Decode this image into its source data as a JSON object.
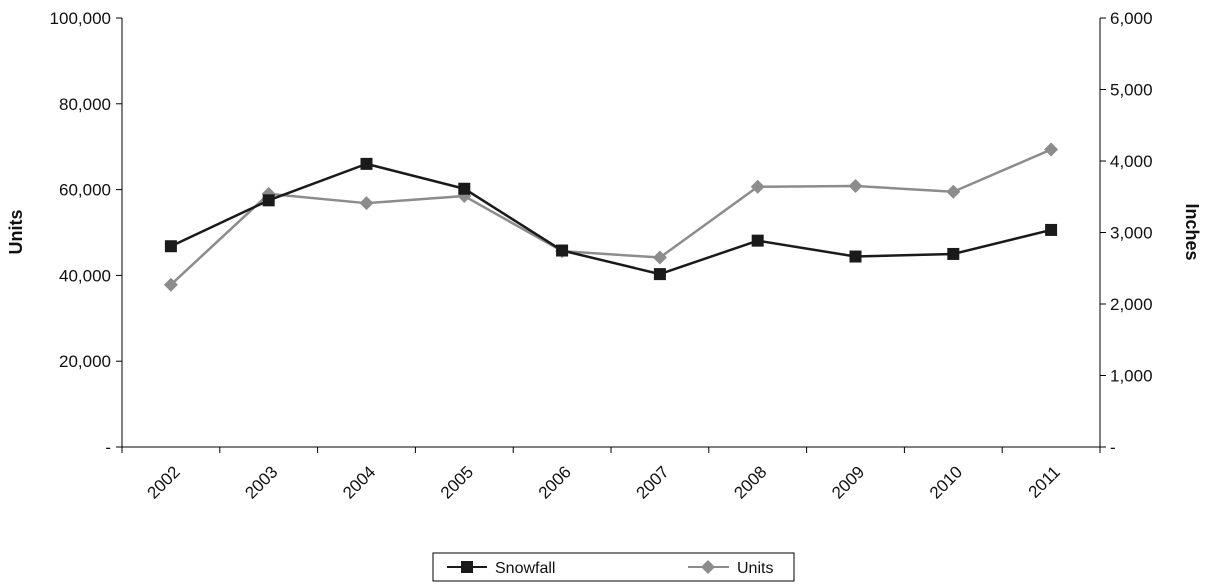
{
  "chart_data": {
    "type": "line",
    "title": "",
    "xlabel": "",
    "ylabel": "Units",
    "y2label": "Inches",
    "categories": [
      "2002",
      "2003",
      "2004",
      "2005",
      "2006",
      "2007",
      "2008",
      "2009",
      "2010",
      "2011"
    ],
    "ylim": [
      0,
      100000
    ],
    "y2lim": [
      0,
      6000
    ],
    "y_ticks": [
      "-",
      "20,000",
      "40,000",
      "60,000",
      "80,000",
      "100,000"
    ],
    "y2_ticks": [
      "-",
      "1,000",
      "2,000",
      "3,000",
      "4,000",
      "5,000",
      "6,000"
    ],
    "grid": false,
    "legend_position": "bottom",
    "series": [
      {
        "name": "Snowfall",
        "axis": "left",
        "color": "#1a1a1a",
        "marker": "square",
        "values": [
          46800,
          57500,
          66000,
          60200,
          45800,
          40300,
          48100,
          44400,
          45000,
          50600
        ]
      },
      {
        "name": "Units",
        "axis": "right",
        "color": "#8c8c8c",
        "marker": "diamond",
        "values": [
          2270,
          3540,
          3410,
          3510,
          2740,
          2650,
          3640,
          3650,
          3570,
          4160
        ]
      }
    ]
  }
}
